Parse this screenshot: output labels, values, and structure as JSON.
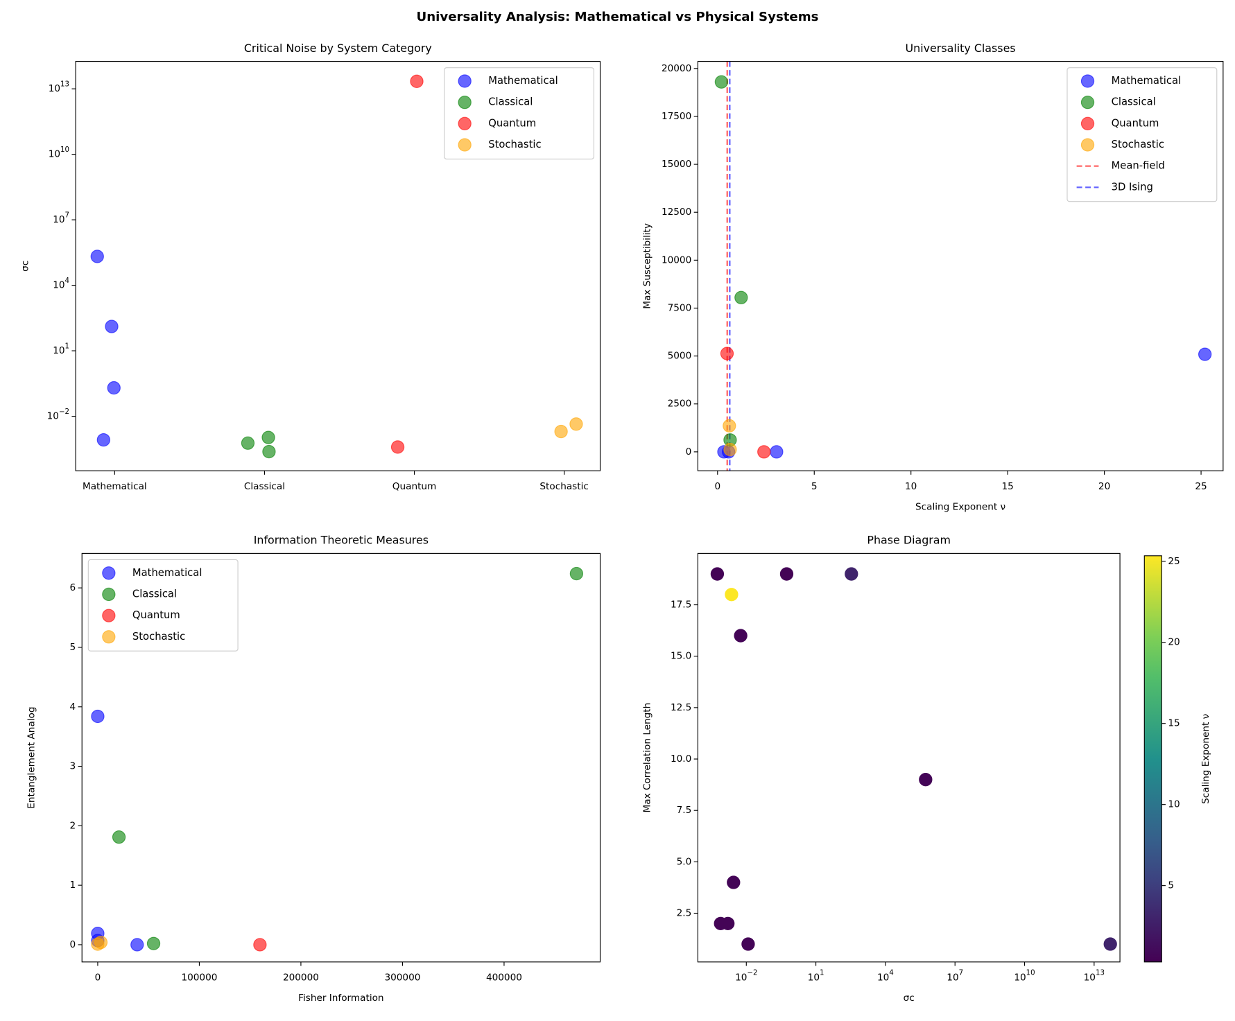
{
  "title": "Universality Analysis: Mathematical vs Physical Systems",
  "chart_data": [
    {
      "type": "scatter",
      "title": "Critical Noise by System Category",
      "ylabel": "σc",
      "ylog": true,
      "xlim": [
        -0.26,
        3.24
      ],
      "ylim": [
        3.2e-05,
        180000000000000.0
      ],
      "xticks": [
        {
          "value": 0,
          "label": "Mathematical"
        },
        {
          "value": 1,
          "label": "Classical"
        },
        {
          "value": 2,
          "label": "Quantum"
        },
        {
          "value": 3,
          "label": "Stochastic"
        }
      ],
      "yticks": [
        {
          "value": 0.01,
          "label": "10^−2"
        },
        {
          "value": 10,
          "label": "10^1"
        },
        {
          "value": 10000,
          "label": "10^4"
        },
        {
          "value": 10000000,
          "label": "10^7"
        },
        {
          "value": 10000000000,
          "label": "10^10"
        },
        {
          "value": 10000000000000,
          "label": "10^13"
        }
      ],
      "legend": "upper right",
      "alpha": 0.6,
      "series": [
        {
          "name": "Mathematical",
          "color": "blue",
          "x": [
            -0.116,
            -0.02,
            -0.005,
            -0.074
          ],
          "y": [
            210000,
            130,
            0.2,
            0.00083
          ]
        },
        {
          "name": "Classical",
          "color": "green",
          "x": [
            0.889,
            1.026,
            1.03
          ],
          "y": [
            0.00059,
            0.00107,
            0.00024
          ]
        },
        {
          "name": "Quantum",
          "color": "red",
          "x": [
            2.016,
            1.889
          ],
          "y": [
            22000000000000,
            0.00039
          ]
        },
        {
          "name": "Stochastic",
          "color": "orange",
          "x": [
            2.979,
            3.08
          ],
          "y": [
            0.002,
            0.0044
          ]
        }
      ]
    },
    {
      "type": "scatter",
      "title": "Universality Classes",
      "xlabel": "Scaling Exponent ν",
      "ylabel": "Max Susceptibility",
      "xlim": [
        -1.02,
        26.14
      ],
      "ylim": [
        -986,
        20370
      ],
      "xticks": [
        0,
        5,
        10,
        15,
        20,
        25
      ],
      "yticks": [
        0,
        2500,
        5000,
        7500,
        10000,
        12500,
        15000,
        17500,
        20000
      ],
      "legend": "upper right",
      "alpha": 0.6,
      "series": [
        {
          "name": "Mathematical",
          "color": "blue",
          "x": [
            0.33,
            0.57,
            3.05,
            25.2
          ],
          "y": [
            0,
            0,
            0,
            5090
          ]
        },
        {
          "name": "Classical",
          "color": "green",
          "x": [
            0.2,
            1.22,
            0.65
          ],
          "y": [
            19300,
            8050,
            620
          ]
        },
        {
          "name": "Quantum",
          "color": "red",
          "x": [
            0.49,
            2.4
          ],
          "y": [
            5130,
            0
          ]
        },
        {
          "name": "Stochastic",
          "color": "orange",
          "x": [
            0.61,
            0.65
          ],
          "y": [
            1360,
            120
          ]
        }
      ],
      "vlines": [
        {
          "name": "Mean-field",
          "x": 0.5,
          "color": "red"
        },
        {
          "name": "3D Ising",
          "x": 0.63,
          "color": "blue"
        }
      ]
    },
    {
      "type": "scatter",
      "title": "Information Theoretic Measures",
      "xlabel": "Fisher Information",
      "ylabel": "Entanglement Analog",
      "xlim": [
        -15500,
        494600
      ],
      "ylim": [
        -0.29,
        6.58
      ],
      "xticks": [
        0,
        100000,
        200000,
        300000,
        400000
      ],
      "yticks": [
        0,
        1,
        2,
        3,
        4,
        5,
        6
      ],
      "legend": "upper left",
      "alpha": 0.6,
      "series": [
        {
          "name": "Mathematical",
          "color": "blue",
          "x": [
            0,
            0,
            0,
            38800
          ],
          "y": [
            3.84,
            0.19,
            0.07,
            0
          ]
        },
        {
          "name": "Classical",
          "color": "green",
          "x": [
            20900,
            55000,
            471300
          ],
          "y": [
            1.81,
            0.02,
            6.24
          ]
        },
        {
          "name": "Quantum",
          "color": "red",
          "x": [
            159700
          ],
          "y": [
            0
          ]
        },
        {
          "name": "Stochastic",
          "color": "orange",
          "x": [
            3100,
            0
          ],
          "y": [
            0.04,
            0.01
          ]
        }
      ]
    },
    {
      "type": "scatter",
      "title": "Phase Diagram",
      "xlabel": "σc",
      "ylabel": "Max Correlation Length",
      "xlog": true,
      "xlim": [
        8.1e-05,
        130000000000000.0
      ],
      "ylim": [
        0.13,
        20.0
      ],
      "xticks": [
        {
          "value": 0.01,
          "label": "10^−2"
        },
        {
          "value": 10,
          "label": "10^1"
        },
        {
          "value": 10000,
          "label": "10^4"
        },
        {
          "value": 10000000,
          "label": "10^7"
        },
        {
          "value": 10000000000,
          "label": "10^10"
        },
        {
          "value": 10000000000000,
          "label": "10^13"
        }
      ],
      "yticks": [
        2.5,
        {
          "value": 5,
          "label": "5.0"
        },
        7.5,
        {
          "value": 10,
          "label": "10.0"
        },
        12.5,
        {
          "value": 15,
          "label": "15.0"
        },
        17.5
      ],
      "series": [
        {
          "x": [
            0.00056,
            0.0023,
            0.0057,
            0.55,
            340,
            540000,
            0.0028,
            0.00078,
            0.0016,
            0.012,
            50000000000000
          ],
          "y": [
            19,
            18,
            16,
            19,
            19,
            9,
            4,
            2,
            2,
            1,
            1
          ],
          "c": [
            0.5,
            25.3,
            0.6,
            0.5,
            3,
            0.6,
            0.6,
            0.5,
            0.5,
            0.6,
            3
          ]
        }
      ],
      "colorbar": {
        "label": "Scaling Exponent ν",
        "cmap": "viridis",
        "clim": [
          0.29,
          25.34
        ],
        "ticks": [
          5,
          10,
          15,
          20,
          25
        ]
      }
    }
  ]
}
